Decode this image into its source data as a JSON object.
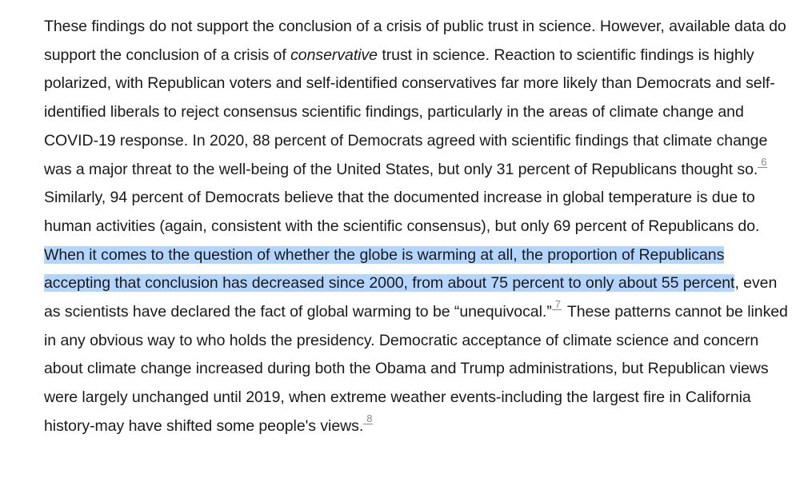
{
  "paragraph": {
    "s1": "These findings do not support the conclusion of a crisis of public trust in science. However, available data do support the conclusion of a crisis of ",
    "s1_em": "conservative",
    "s2": " trust in science. Reaction to scientific findings is highly polarized, with Republican voters and self-identified conservatives far more likely than Democrats and self-identified liberals to reject consensus scientific findings, particularly in the areas of climate change and COVID-19 response. In 2020, 88 percent of Democrats agreed with scientific findings that climate change was a major threat to the well-being of the United States, but only 31 percent of Republicans thought so.",
    "fn1": "6",
    "s3": " Similarly, 94 percent of Democrats believe that the documented increase in global temperature is due to human activities (again, consistent with the scientific consensus), but only 69 percent of Republicans do. ",
    "highlight": "When it comes to the question of whether the globe is warming at all, the proportion of Republicans accepting that conclusion has decreased since 2000, from about 75 percent to only about 55 percent",
    "s4": ", even as scientists have declared the fact of global warming to be “unequivocal.”",
    "fn2": "7",
    "s5": " These patterns cannot be linked in any obvious way to who holds the presidency. Democratic acceptance of climate science and concern about climate change increased during both the Obama and Trump administrations, but Republican views were largely unchanged until 2019, when extreme weather events-including the largest fire in California history-may have shifted some people's views.",
    "fn3": "8"
  },
  "colors": {
    "text": "#1a1a1a",
    "selection": "#b4d5fe",
    "footnote": "#8a8a8a"
  }
}
